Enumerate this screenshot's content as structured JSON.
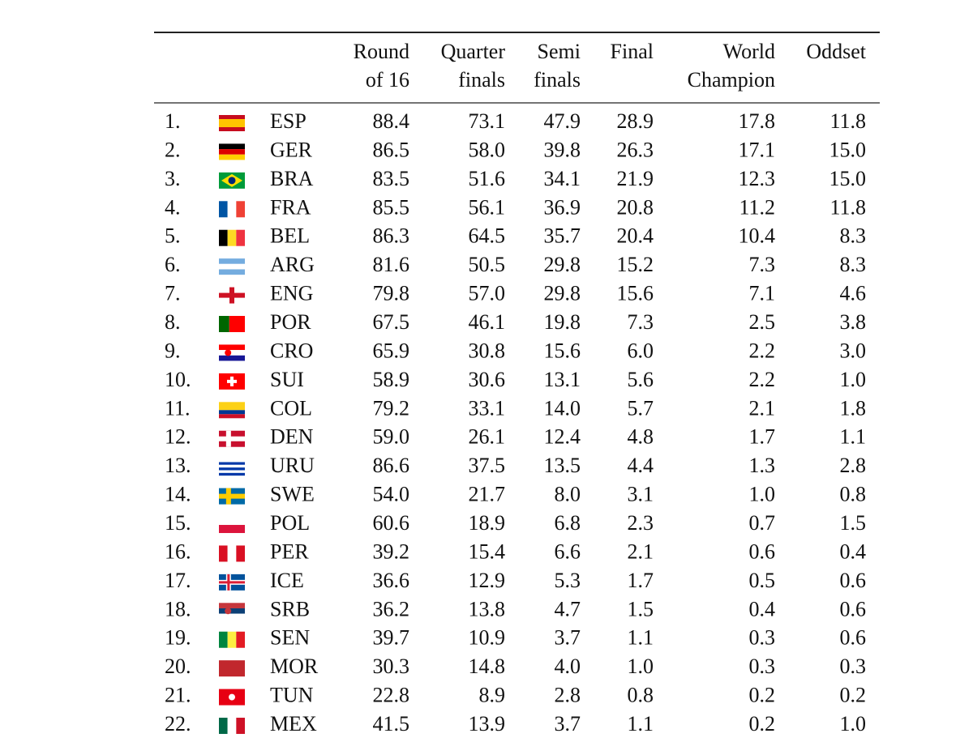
{
  "header": [
    [
      "Round",
      "of 16"
    ],
    [
      "Quarter",
      "finals"
    ],
    [
      "Semi",
      "finals"
    ],
    [
      "Final"
    ],
    [
      "World",
      "Champion"
    ],
    [
      "Oddset"
    ]
  ],
  "rows": [
    [
      "1.",
      "ESP",
      "88.4",
      "73.1",
      "47.9",
      "28.9",
      "17.8",
      "11.8"
    ],
    [
      "2.",
      "GER",
      "86.5",
      "58.0",
      "39.8",
      "26.3",
      "17.1",
      "15.0"
    ],
    [
      "3.",
      "BRA",
      "83.5",
      "51.6",
      "34.1",
      "21.9",
      "12.3",
      "15.0"
    ],
    [
      "4.",
      "FRA",
      "85.5",
      "56.1",
      "36.9",
      "20.8",
      "11.2",
      "11.8"
    ],
    [
      "5.",
      "BEL",
      "86.3",
      "64.5",
      "35.7",
      "20.4",
      "10.4",
      "8.3"
    ],
    [
      "6.",
      "ARG",
      "81.6",
      "50.5",
      "29.8",
      "15.2",
      "7.3",
      "8.3"
    ],
    [
      "7.",
      "ENG",
      "79.8",
      "57.0",
      "29.8",
      "15.6",
      "7.1",
      "4.6"
    ],
    [
      "8.",
      "POR",
      "67.5",
      "46.1",
      "19.8",
      "7.3",
      "2.5",
      "3.8"
    ],
    [
      "9.",
      "CRO",
      "65.9",
      "30.8",
      "15.6",
      "6.0",
      "2.2",
      "3.0"
    ],
    [
      "10.",
      "SUI",
      "58.9",
      "30.6",
      "13.1",
      "5.6",
      "2.2",
      "1.0"
    ],
    [
      "11.",
      "COL",
      "79.2",
      "33.1",
      "14.0",
      "5.7",
      "2.1",
      "1.8"
    ],
    [
      "12.",
      "DEN",
      "59.0",
      "26.1",
      "12.4",
      "4.8",
      "1.7",
      "1.1"
    ],
    [
      "13.",
      "URU",
      "86.6",
      "37.5",
      "13.5",
      "4.4",
      "1.3",
      "2.8"
    ],
    [
      "14.",
      "SWE",
      "54.0",
      "21.7",
      "8.0",
      "3.1",
      "1.0",
      "0.8"
    ],
    [
      "15.",
      "POL",
      "60.6",
      "18.9",
      "6.8",
      "2.3",
      "0.7",
      "1.5"
    ],
    [
      "16.",
      "PER",
      "39.2",
      "15.4",
      "6.6",
      "2.1",
      "0.6",
      "0.4"
    ],
    [
      "17.",
      "ICE",
      "36.6",
      "12.9",
      "5.3",
      "1.7",
      "0.5",
      "0.6"
    ],
    [
      "18.",
      "SRB",
      "36.2",
      "13.8",
      "4.7",
      "1.5",
      "0.4",
      "0.6"
    ],
    [
      "19.",
      "SEN",
      "39.7",
      "10.9",
      "3.7",
      "1.1",
      "0.3",
      "0.6"
    ],
    [
      "20.",
      "MOR",
      "30.3",
      "14.8",
      "4.0",
      "1.0",
      "0.3",
      "0.3"
    ],
    [
      "21.",
      "TUN",
      "22.8",
      "8.9",
      "2.8",
      "0.8",
      "0.2",
      "0.2"
    ],
    [
      "22.",
      "MEX",
      "41.5",
      "13.9",
      "3.7",
      "1.1",
      "0.2",
      "1.0"
    ]
  ]
}
